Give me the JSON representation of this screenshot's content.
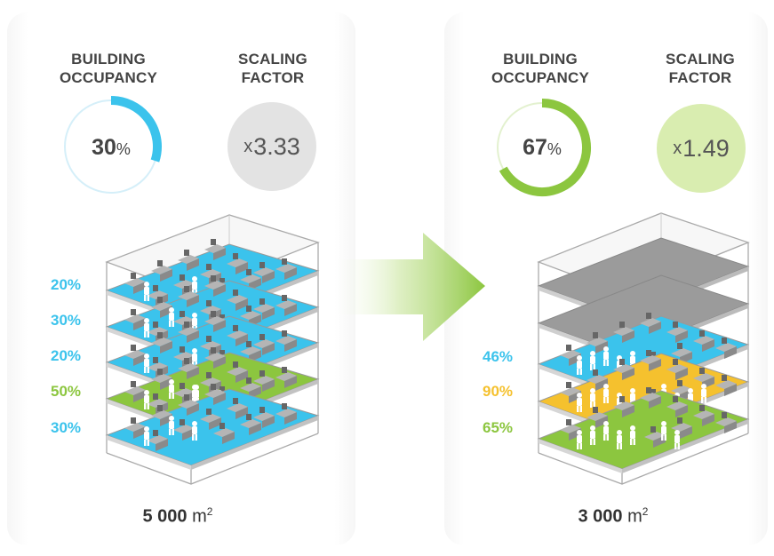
{
  "colors": {
    "blue": "#3bc3ec",
    "green": "#8cc63f",
    "yellow": "#f5c12e",
    "gray_circle": "#e3e3e3",
    "light_green_circle": "#d9edb0"
  },
  "before": {
    "occupancy_label": "BUILDING OCCUPANCY",
    "occupancy_label_line1": "BUILDING",
    "occupancy_label_line2": "OCCUPANCY",
    "occupancy_value": "30",
    "occupancy_unit": "%",
    "occupancy_fraction": 0.3,
    "scaling_label_line1": "SCALING",
    "scaling_label_line2": "FACTOR",
    "scaling_prefix": "x",
    "scaling_value": "3.33",
    "floors": [
      {
        "label": "20%",
        "color": "blue"
      },
      {
        "label": "30%",
        "color": "blue"
      },
      {
        "label": "20%",
        "color": "blue"
      },
      {
        "label": "50%",
        "color": "green"
      },
      {
        "label": "30%",
        "color": "blue"
      }
    ],
    "area_number": "5 000",
    "area_unit": "m",
    "area_exp": "2"
  },
  "after": {
    "occupancy_label_line1": "BUILDING",
    "occupancy_label_line2": "OCCUPANCY",
    "occupancy_value": "67",
    "occupancy_unit": "%",
    "occupancy_fraction": 0.67,
    "scaling_label_line1": "SCALING",
    "scaling_label_line2": "FACTOR",
    "scaling_prefix": "x",
    "scaling_value": "1.49",
    "floors": [
      {
        "label": "46%",
        "color": "blue"
      },
      {
        "label": "90%",
        "color": "yellow"
      },
      {
        "label": "65%",
        "color": "green"
      }
    ],
    "empty_floors": 2,
    "area_number": "3 000",
    "area_unit": "m",
    "area_exp": "2"
  }
}
